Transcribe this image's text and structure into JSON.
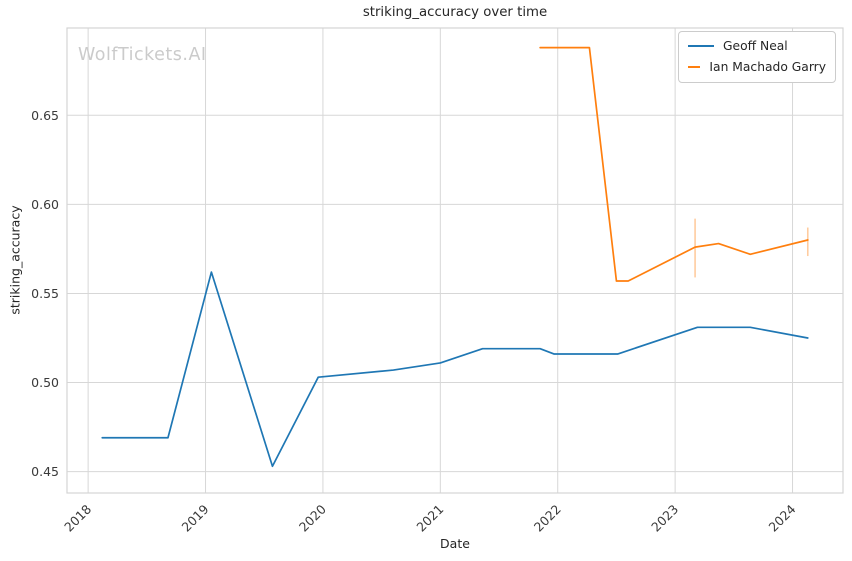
{
  "watermark": "WolfTickets.AI",
  "colors": {
    "grid": "#d7d7d7",
    "axes_border": "#d4d4d4",
    "title_text": "#262626",
    "tick_text": "#3a3a3a",
    "watermark_text": "#cbcbcb",
    "legend_border": "#cccccc",
    "series_blue": "#1f77b4",
    "series_orange": "#ff7f0e"
  },
  "chart_data": {
    "type": "line",
    "title": "striking_accuracy over time",
    "xlabel": "Date",
    "ylabel": "striking_accuracy",
    "x_ticks": [
      2018,
      2019,
      2020,
      2021,
      2022,
      2023,
      2024
    ],
    "y_ticks": [
      0.45,
      0.5,
      0.55,
      0.6,
      0.65
    ],
    "xlim": [
      2017.82,
      2024.43
    ],
    "ylim": [
      0.438,
      0.699
    ],
    "grid": true,
    "legend": {
      "position": "upper right",
      "entries": [
        "Geoff Neal",
        "Ian Machado Garry"
      ]
    },
    "series": [
      {
        "name": "Geoff Neal",
        "color": "#1f77b4",
        "x": [
          2018.12,
          2018.68,
          2019.05,
          2019.57,
          2019.96,
          2020.6,
          2021.0,
          2021.36,
          2021.85,
          2021.97,
          2022.51,
          2023.19,
          2023.64,
          2024.13
        ],
        "y": [
          0.469,
          0.469,
          0.562,
          0.453,
          0.503,
          0.507,
          0.511,
          0.519,
          0.519,
          0.516,
          0.516,
          0.531,
          0.531,
          0.525
        ]
      },
      {
        "name": "Ian Machado Garry",
        "color": "#ff7f0e",
        "x": [
          2021.85,
          2022.27,
          2022.5,
          2022.6,
          2023.17,
          2023.37,
          2023.64,
          2024.13
        ],
        "y": [
          0.688,
          0.688,
          0.557,
          0.557,
          0.576,
          0.578,
          0.572,
          0.58
        ],
        "error_bar_color": "#ffcc9f",
        "error_bars": [
          {
            "x": 2023.17,
            "y_low": 0.559,
            "y_high": 0.592
          },
          {
            "x": 2024.13,
            "y_low": 0.571,
            "y_high": 0.587
          }
        ]
      }
    ]
  }
}
